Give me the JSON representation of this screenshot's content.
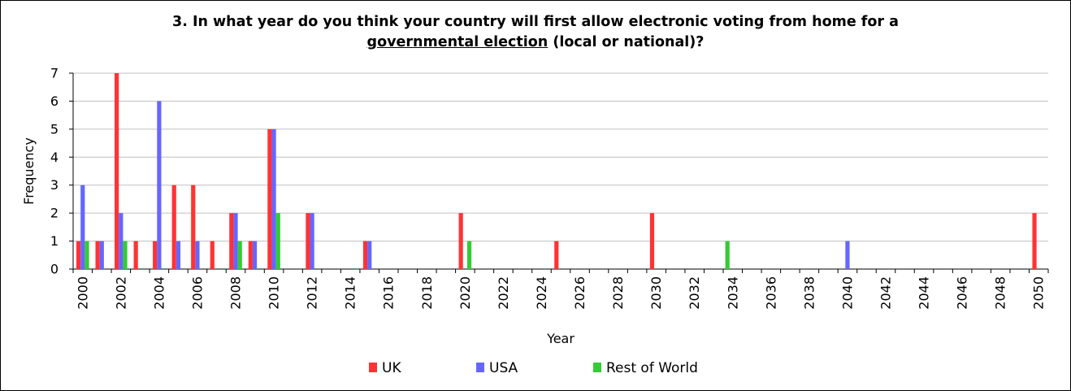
{
  "chart_data": {
    "type": "bar",
    "title_parts": [
      "3. In what year do you think your country will first allow electronic voting from home for a",
      "governmental election",
      " (local or national)?"
    ],
    "xlabel": "Year",
    "ylabel": "Frequency",
    "ylim": [
      0,
      7
    ],
    "yticks": [
      0,
      1,
      2,
      3,
      4,
      5,
      6,
      7
    ],
    "xlim": [
      2000,
      2050
    ],
    "xticks": [
      2000,
      2002,
      2004,
      2006,
      2008,
      2010,
      2012,
      2014,
      2016,
      2018,
      2020,
      2022,
      2024,
      2026,
      2028,
      2030,
      2032,
      2034,
      2036,
      2038,
      2040,
      2042,
      2044,
      2046,
      2048,
      2050
    ],
    "grid": "horizontal",
    "legend_position": "bottom",
    "series": [
      {
        "name": "UK",
        "color": "#ff3333",
        "points": [
          [
            2000,
            1
          ],
          [
            2001,
            1
          ],
          [
            2002,
            7
          ],
          [
            2003,
            1
          ],
          [
            2004,
            1
          ],
          [
            2005,
            3
          ],
          [
            2006,
            3
          ],
          [
            2007,
            1
          ],
          [
            2008,
            2
          ],
          [
            2009,
            1
          ],
          [
            2010,
            5
          ],
          [
            2012,
            2
          ],
          [
            2015,
            1
          ],
          [
            2020,
            2
          ],
          [
            2025,
            1
          ],
          [
            2030,
            2
          ],
          [
            2050,
            2
          ]
        ]
      },
      {
        "name": "USA",
        "color": "#6666ff",
        "points": [
          [
            2000,
            3
          ],
          [
            2001,
            1
          ],
          [
            2002,
            2
          ],
          [
            2004,
            6
          ],
          [
            2005,
            1
          ],
          [
            2006,
            1
          ],
          [
            2008,
            2
          ],
          [
            2009,
            1
          ],
          [
            2010,
            5
          ],
          [
            2012,
            2
          ],
          [
            2015,
            1
          ],
          [
            2040,
            1
          ]
        ]
      },
      {
        "name": "Rest of World",
        "color": "#33cc33",
        "points": [
          [
            2000,
            1
          ],
          [
            2002,
            1
          ],
          [
            2008,
            1
          ],
          [
            2010,
            2
          ],
          [
            2020,
            1
          ],
          [
            2033.5,
            1
          ]
        ]
      }
    ]
  }
}
